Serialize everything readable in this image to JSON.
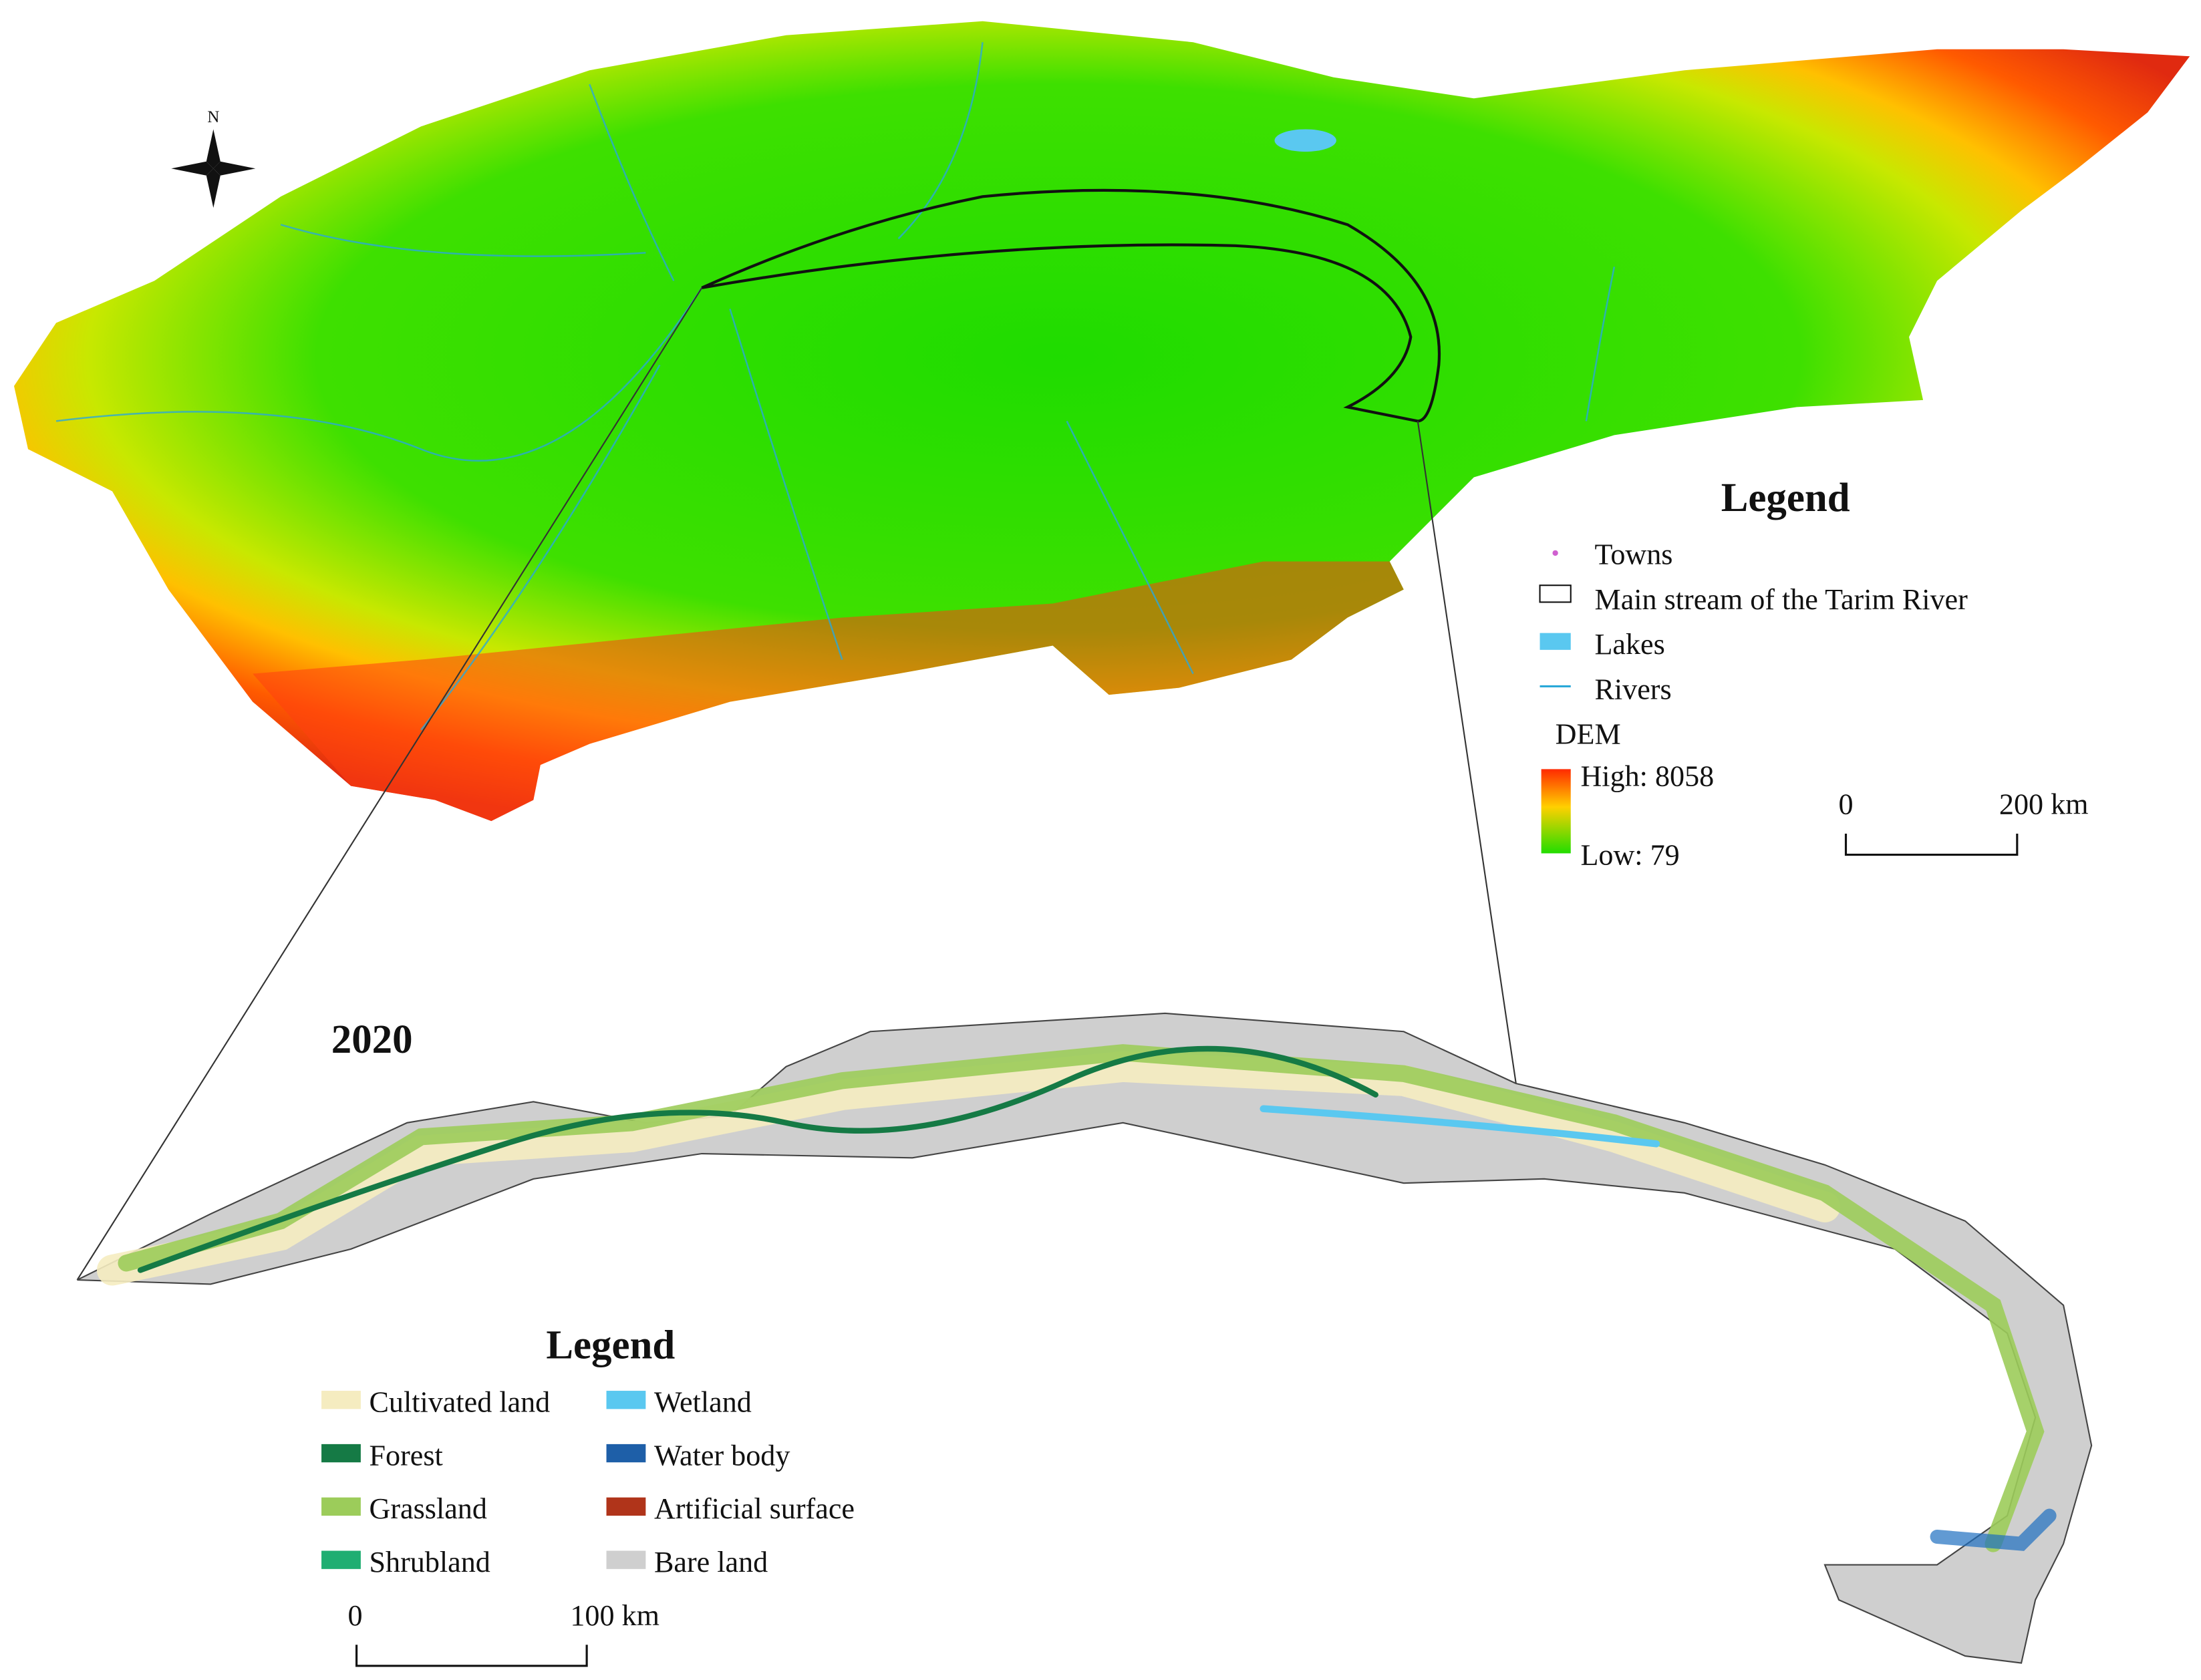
{
  "north": "N",
  "basin_legend": {
    "title": "Legend",
    "items": [
      "Towns",
      "Main stream of the Tarim River",
      "Lakes",
      "Rivers"
    ],
    "dem_title": "DEM",
    "dem_high": "High: 8058",
    "dem_low": "Low: 79"
  },
  "basin_scale": {
    "start": "0",
    "end": "200 km"
  },
  "year": "2020",
  "landuse_legend": {
    "title": "Legend",
    "items": [
      "Cultivated land",
      "Wetland",
      "Forest",
      "Water body",
      "Grassland",
      "Artificial surface",
      "Shrubland",
      "Bare land"
    ]
  },
  "landuse_scale": {
    "start": "0",
    "end": "100 km"
  }
}
